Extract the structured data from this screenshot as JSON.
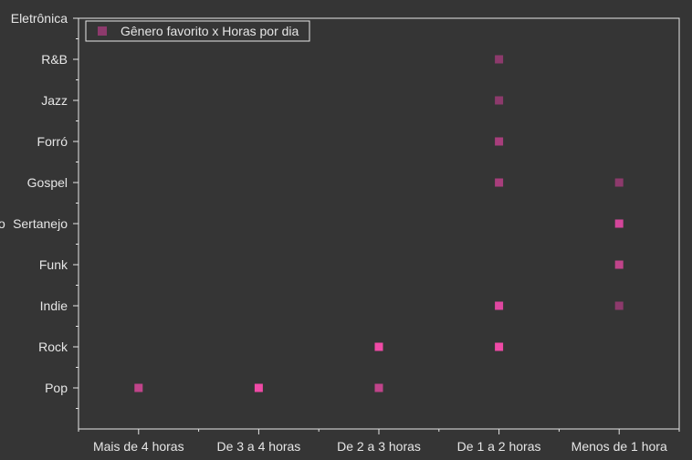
{
  "chart_data": {
    "type": "scatter",
    "x_categories": [
      "Mais de 4 horas",
      "De 3 a 4 horas",
      "De 2 a 3 horas",
      "De 1 a 2 horas",
      "Menos de 1 hora"
    ],
    "y_categories": [
      "Pop",
      "Rock",
      "Indie",
      "Funk",
      "Sertanejo",
      "Gospel",
      "Forró",
      "Jazz",
      "R&B",
      "Eletrônica"
    ],
    "series": [
      {
        "name": "Gênero favorito x Horas por dia",
        "points": [
          {
            "x": "Mais de 4 horas",
            "y": "Pop",
            "color": "#c0448a"
          },
          {
            "x": "De 3 a 4 horas",
            "y": "Pop",
            "color": "#ef4aa6"
          },
          {
            "x": "De 2 a 3 horas",
            "y": "Pop",
            "color": "#c0448a"
          },
          {
            "x": "De 2 a 3 horas",
            "y": "Rock",
            "color": "#ef4aa6"
          },
          {
            "x": "De 1 a 2 horas",
            "y": "Rock",
            "color": "#ef4aa6"
          },
          {
            "x": "De 1 a 2 horas",
            "y": "Indie",
            "color": "#df47a0"
          },
          {
            "x": "De 1 a 2 horas",
            "y": "Gospel",
            "color": "#a83e7c"
          },
          {
            "x": "De 1 a 2 horas",
            "y": "Forró",
            "color": "#a83e7c"
          },
          {
            "x": "De 1 a 2 horas",
            "y": "Jazz",
            "color": "#8d3a6c"
          },
          {
            "x": "De 1 a 2 horas",
            "y": "R&B",
            "color": "#8d3a6c"
          },
          {
            "x": "Menos de 1 hora",
            "y": "Indie",
            "color": "#8d3a6c"
          },
          {
            "x": "Menos de 1 hora",
            "y": "Funk",
            "color": "#c0448a"
          },
          {
            "x": "Menos de 1 hora",
            "y": "Sertanejo",
            "color": "#d3469a"
          },
          {
            "x": "Menos de 1 hora",
            "y": "Gospel",
            "color": "#8d3a6c"
          }
        ]
      }
    ],
    "legend": {
      "label": "Gênero favorito x Horas por dia",
      "placement": "top-left",
      "color": "#8d3a6c"
    },
    "grid": false,
    "colors": {
      "background": "#353535",
      "axis": "#e6e6e6",
      "text": "#e6e6e6"
    }
  }
}
